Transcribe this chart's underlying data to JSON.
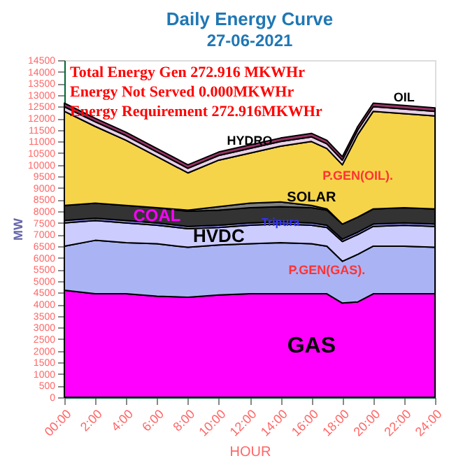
{
  "chart_data": {
    "type": "area",
    "stacked": true,
    "title": "Daily Energy Curve",
    "subtitle": "27-06-2021",
    "xlabel": "HOUR",
    "ylabel": "MW",
    "annotations": [
      "Total Energy Gen 272.916 MKWHr",
      "Energy Not Served  0.000MKWHr",
      "Energy Requirement    272.916MKWHr"
    ],
    "x": [
      0,
      2,
      4,
      6,
      8,
      10,
      12,
      14,
      16,
      17,
      18,
      19,
      20,
      22,
      24
    ],
    "series": [
      {
        "name": "GAS",
        "color": "#ff00ff",
        "values": [
          4600,
          4450,
          4450,
          4350,
          4300,
          4400,
          4450,
          4450,
          4450,
          4450,
          4050,
          4100,
          4450,
          4450,
          4450
        ]
      },
      {
        "name": "P.GEN(GAS).",
        "color": "#aab4f5",
        "values": [
          1900,
          2300,
          2200,
          2250,
          2150,
          2150,
          2150,
          2200,
          2150,
          2050,
          1800,
          2050,
          2050,
          2050,
          2000
        ]
      },
      {
        "name": "HVDC",
        "color": "#ccccff",
        "values": [
          1000,
          850,
          850,
          800,
          800,
          750,
          800,
          800,
          800,
          800,
          850,
          850,
          850,
          900,
          900
        ]
      },
      {
        "name": "Tripura",
        "color": "#9999ff",
        "values": [
          100,
          100,
          100,
          100,
          100,
          100,
          100,
          100,
          100,
          100,
          100,
          100,
          100,
          100,
          100
        ]
      },
      {
        "name": "COAL",
        "color": "#333333",
        "values": [
          650,
          650,
          650,
          650,
          650,
          650,
          650,
          650,
          650,
          650,
          650,
          650,
          650,
          650,
          650
        ]
      },
      {
        "name": "SOLAR",
        "color": "#808080",
        "values": [
          0,
          0,
          0,
          0,
          50,
          150,
          200,
          200,
          100,
          50,
          0,
          0,
          0,
          0,
          0
        ]
      },
      {
        "name": "P.GEN(OIL).",
        "color": "#f5d44a",
        "values": [
          4050,
          3300,
          2800,
          2200,
          1600,
          2000,
          2150,
          2400,
          2750,
          2600,
          2550,
          3550,
          4200,
          4050,
          4000
        ]
      },
      {
        "name": "HYDRO",
        "color": "#e8d0e8",
        "values": [
          200,
          200,
          200,
          200,
          200,
          200,
          200,
          200,
          200,
          200,
          200,
          200,
          200,
          200,
          200
        ]
      },
      {
        "name": "OIL",
        "color": "#993366",
        "values": [
          150,
          150,
          150,
          150,
          150,
          150,
          150,
          150,
          150,
          150,
          150,
          150,
          150,
          150,
          150
        ]
      }
    ],
    "xlim": [
      0,
      24
    ],
    "xticks": [
      {
        "value": 0,
        "label": "00:00"
      },
      {
        "value": 2,
        "label": "2:00"
      },
      {
        "value": 4,
        "label": "4:00"
      },
      {
        "value": 6,
        "label": "6:00"
      },
      {
        "value": 8,
        "label": "8:00"
      },
      {
        "value": 10,
        "label": "10:00"
      },
      {
        "value": 12,
        "label": "12:00"
      },
      {
        "value": 14,
        "label": "14:00"
      },
      {
        "value": 16,
        "label": "16:00"
      },
      {
        "value": 18,
        "label": "18:00"
      },
      {
        "value": 20,
        "label": "20:00"
      },
      {
        "value": 22,
        "label": "22:00"
      },
      {
        "value": 24,
        "label": "24:00"
      }
    ],
    "ylim": [
      0,
      14500
    ],
    "yticks": [
      0,
      500,
      1000,
      1500,
      2000,
      2500,
      3000,
      3500,
      4000,
      4500,
      5000,
      5500,
      6000,
      6500,
      7000,
      7500,
      8000,
      8500,
      9000,
      9500,
      10000,
      10500,
      11000,
      11500,
      12000,
      12500,
      13000,
      13500,
      14000,
      14500
    ],
    "grid": false,
    "legend": false
  }
}
